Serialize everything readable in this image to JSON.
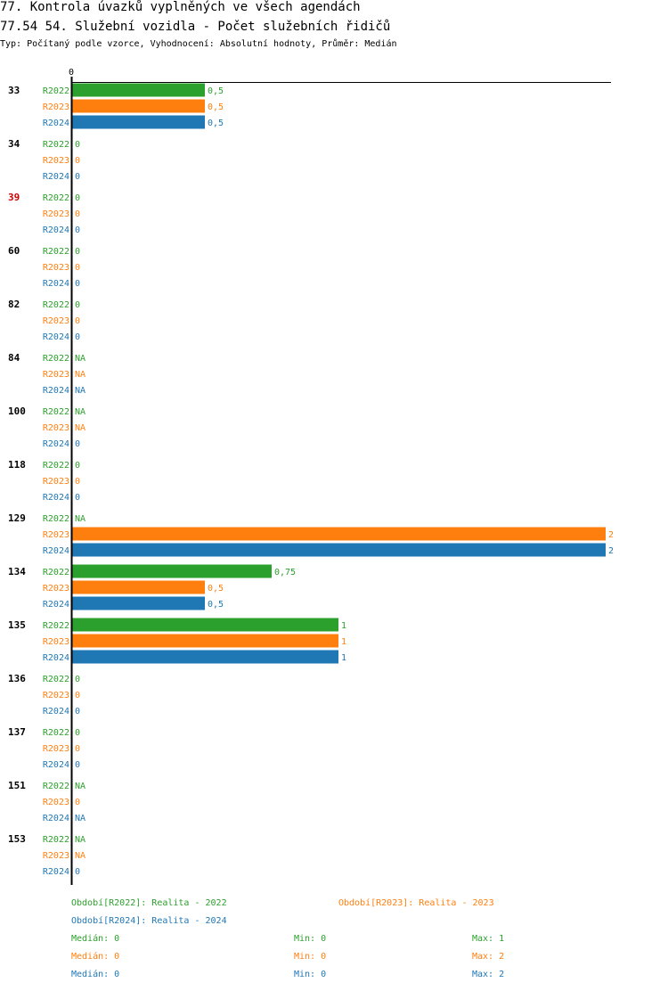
{
  "header": {
    "title": "77. Kontrola úvazků vyplněných ve všech agendách",
    "subtitle": "77.54 54. Služební vozidla - Počet služebních řidičů",
    "type_line": "Typ: Počítaný podle vzorce, Vyhodnocení: Absolutní hodnoty, Průměr: Medián"
  },
  "colors": {
    "R2022": "#2ca02c",
    "R2023": "#ff7f0e",
    "R2024": "#1f77b4",
    "highlight": "#cc0000"
  },
  "chart_data": {
    "type": "bar",
    "orientation": "horizontal",
    "axis_zero_label": "0",
    "xlim": [
      0,
      2
    ],
    "series_names": [
      "R2022",
      "R2023",
      "R2024"
    ],
    "groups": [
      {
        "label": "33",
        "highlight": false,
        "values": [
          0.5,
          0.5,
          0.5
        ],
        "labels": [
          "0,5",
          "0,5",
          "0,5"
        ]
      },
      {
        "label": "34",
        "highlight": false,
        "values": [
          0,
          0,
          0
        ],
        "labels": [
          "0",
          "0",
          "0"
        ]
      },
      {
        "label": "39",
        "highlight": true,
        "values": [
          0,
          0,
          0
        ],
        "labels": [
          "0",
          "0",
          "0"
        ]
      },
      {
        "label": "60",
        "highlight": false,
        "values": [
          0,
          0,
          0
        ],
        "labels": [
          "0",
          "0",
          "0"
        ]
      },
      {
        "label": "82",
        "highlight": false,
        "values": [
          0,
          0,
          0
        ],
        "labels": [
          "0",
          "0",
          "0"
        ]
      },
      {
        "label": "84",
        "highlight": false,
        "values": [
          null,
          null,
          null
        ],
        "labels": [
          "NA",
          "NA",
          "NA"
        ]
      },
      {
        "label": "100",
        "highlight": false,
        "values": [
          null,
          null,
          0
        ],
        "labels": [
          "NA",
          "NA",
          "0"
        ]
      },
      {
        "label": "118",
        "highlight": false,
        "values": [
          0,
          0,
          0
        ],
        "labels": [
          "0",
          "0",
          "0"
        ]
      },
      {
        "label": "129",
        "highlight": false,
        "values": [
          null,
          2,
          2
        ],
        "labels": [
          "NA",
          "2",
          "2"
        ]
      },
      {
        "label": "134",
        "highlight": false,
        "values": [
          0.75,
          0.5,
          0.5
        ],
        "labels": [
          "0,75",
          "0,5",
          "0,5"
        ]
      },
      {
        "label": "135",
        "highlight": false,
        "values": [
          1,
          1,
          1
        ],
        "labels": [
          "1",
          "1",
          "1"
        ]
      },
      {
        "label": "136",
        "highlight": false,
        "values": [
          0,
          0,
          0
        ],
        "labels": [
          "0",
          "0",
          "0"
        ]
      },
      {
        "label": "137",
        "highlight": false,
        "values": [
          0,
          0,
          0
        ],
        "labels": [
          "0",
          "0",
          "0"
        ]
      },
      {
        "label": "151",
        "highlight": false,
        "values": [
          null,
          0,
          null
        ],
        "labels": [
          "NA",
          "0",
          "NA"
        ]
      },
      {
        "label": "153",
        "highlight": false,
        "values": [
          null,
          null,
          0
        ],
        "labels": [
          "NA",
          "NA",
          "0"
        ]
      }
    ]
  },
  "legend": {
    "periods": [
      {
        "text": "Období[R2022]: Realita - 2022",
        "series": "R2022"
      },
      {
        "text": "Období[R2023]: Realita - 2023",
        "series": "R2023"
      },
      {
        "text": "Období[R2024]: Realita - 2024",
        "series": "R2024"
      }
    ],
    "stats": [
      {
        "series": "R2022",
        "median": "Medián: 0",
        "min": "Min: 0",
        "max": "Max: 1"
      },
      {
        "series": "R2023",
        "median": "Medián: 0",
        "min": "Min: 0",
        "max": "Max: 2"
      },
      {
        "series": "R2024",
        "median": "Medián: 0",
        "min": "Min: 0",
        "max": "Max: 2"
      }
    ]
  }
}
